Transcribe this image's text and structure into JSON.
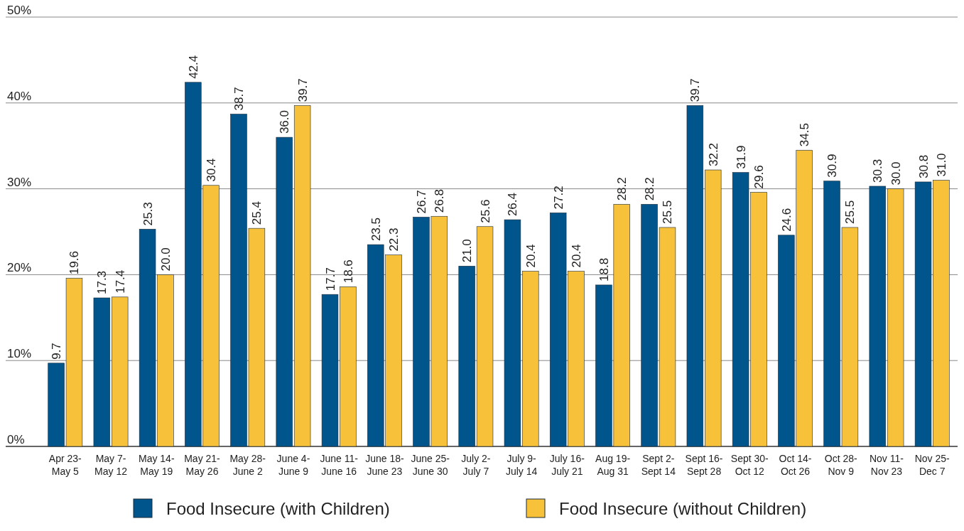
{
  "chart_data": {
    "type": "bar",
    "categories": [
      "Apr 23-\nMay 5",
      "May 7-\nMay 12",
      "May 14-\nMay 19",
      "May 21-\nMay 26",
      "May 28-\nJune 2",
      "June 4-\nJune 9",
      "June 11-\nJune 16",
      "June 18-\nJune 23",
      "June 25-\nJune 30",
      "July 2-\nJuly 7",
      "July 9-\nJuly 14",
      "July 16-\nJuly 21",
      "Aug 19-\nAug 31",
      "Sept 2-\nSept 14",
      "Sept 16-\nSept 28",
      "Sept 30-\nOct 12",
      "Oct 14-\nOct 26",
      "Oct 28-\nNov 9",
      "Nov 11-\nNov 23",
      "Nov 25-\nDec 7"
    ],
    "series": [
      {
        "name": "Food Insecure (with Children)",
        "color": "#00558c",
        "values": [
          9.7,
          17.3,
          25.3,
          42.4,
          38.7,
          36.0,
          17.7,
          23.5,
          26.7,
          21.0,
          26.4,
          27.2,
          18.8,
          28.2,
          39.7,
          31.9,
          24.6,
          30.9,
          30.3,
          30.8
        ],
        "value_labels": [
          "9.7",
          "17.3",
          "25.3",
          "42.4",
          "38.7",
          "36.0",
          "17.7",
          "23.5",
          "26.7",
          "21.0",
          "26.4",
          "27.2",
          "18.8",
          "28.2",
          "39.7",
          "31.9",
          "24.6",
          "30.9",
          "30.3",
          "30.8"
        ]
      },
      {
        "name": "Food Insecure (without Children)",
        "color": "#f8c13a",
        "values": [
          19.6,
          17.4,
          20.0,
          30.4,
          25.4,
          39.7,
          18.6,
          22.3,
          26.8,
          25.6,
          20.4,
          20.4,
          28.2,
          25.5,
          32.2,
          29.6,
          34.5,
          25.5,
          30.0,
          31.0
        ],
        "value_labels": [
          "19.6",
          "17.4",
          "20.0",
          "30.4",
          "25.4",
          "39.7",
          "18.6",
          "22.3",
          "26.8",
          "25.6",
          "20.4",
          "20.4",
          "28.2",
          "25.5",
          "32.2",
          "29.6",
          "34.5",
          "25.5",
          "30.0",
          "31.0"
        ]
      }
    ],
    "ylim": [
      0,
      50
    ],
    "yticks": [
      {
        "value": 0,
        "label": "0%"
      },
      {
        "value": 10,
        "label": "10%"
      },
      {
        "value": 20,
        "label": "20%"
      },
      {
        "value": 30,
        "label": "30%"
      },
      {
        "value": 40,
        "label": "40%"
      },
      {
        "value": 50,
        "label": "50%"
      }
    ],
    "grid": "y",
    "legend": "bottom"
  }
}
